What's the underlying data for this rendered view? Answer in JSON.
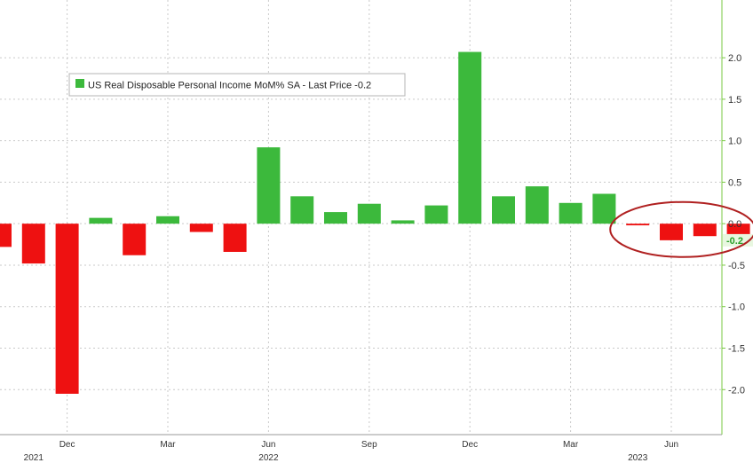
{
  "chart_data": {
    "type": "bar",
    "legend": {
      "label": "US Real Disposable Personal Income MoM% SA - Last Price -0.2",
      "color": "#3cb93c",
      "placement": "top-left"
    },
    "last_price_label": "-0.2",
    "colors": {
      "positive": "#3cb93c",
      "negative": "#ee1111",
      "annotation": "#b02020"
    },
    "ylim": [
      -2.35,
      2.45
    ],
    "yticks": [
      {
        "value": 2.0,
        "label": "2.0"
      },
      {
        "value": 1.5,
        "label": "1.5"
      },
      {
        "value": 1.0,
        "label": "1.0"
      },
      {
        "value": 0.5,
        "label": "0.5"
      },
      {
        "value": 0.0,
        "label": "0.0"
      },
      {
        "value": -0.5,
        "label": "-0.5"
      },
      {
        "value": -1.0,
        "label": "-1.0"
      },
      {
        "value": -1.5,
        "label": "-1.5"
      },
      {
        "value": -2.0,
        "label": "-2.0"
      }
    ],
    "x": [
      "2021-10",
      "2021-11",
      "2021-12",
      "2022-01",
      "2022-02",
      "2022-03",
      "2022-04",
      "2022-05",
      "2022-06",
      "2022-07",
      "2022-08",
      "2022-09",
      "2022-10",
      "2022-11",
      "2022-12",
      "2023-01",
      "2023-02",
      "2023-03",
      "2023-04",
      "2023-05",
      "2023-06",
      "2023-07",
      "2023-08"
    ],
    "values": [
      -0.28,
      -0.48,
      -2.05,
      0.07,
      -0.38,
      0.09,
      -0.1,
      -0.34,
      0.92,
      0.33,
      0.14,
      0.24,
      0.04,
      0.22,
      2.07,
      0.33,
      0.45,
      0.25,
      0.36,
      -0.02,
      -0.2,
      -0.15,
      -0.2
    ],
    "xticks": [
      {
        "label": "Dec",
        "index": 2
      },
      {
        "label": "Mar",
        "index": 5
      },
      {
        "label": "Jun",
        "index": 8
      },
      {
        "label": "Sep",
        "index": 11
      },
      {
        "label": "Dec",
        "index": 14
      },
      {
        "label": "Mar",
        "index": 17
      },
      {
        "label": "Jun",
        "index": 20
      }
    ],
    "year_labels": [
      {
        "label": "2021",
        "index": 1
      },
      {
        "label": "2022",
        "index": 8
      },
      {
        "label": "2023",
        "index": 19
      }
    ],
    "annotation": {
      "shape": "ellipse",
      "covers_indices": [
        19,
        20,
        21,
        22
      ]
    }
  }
}
